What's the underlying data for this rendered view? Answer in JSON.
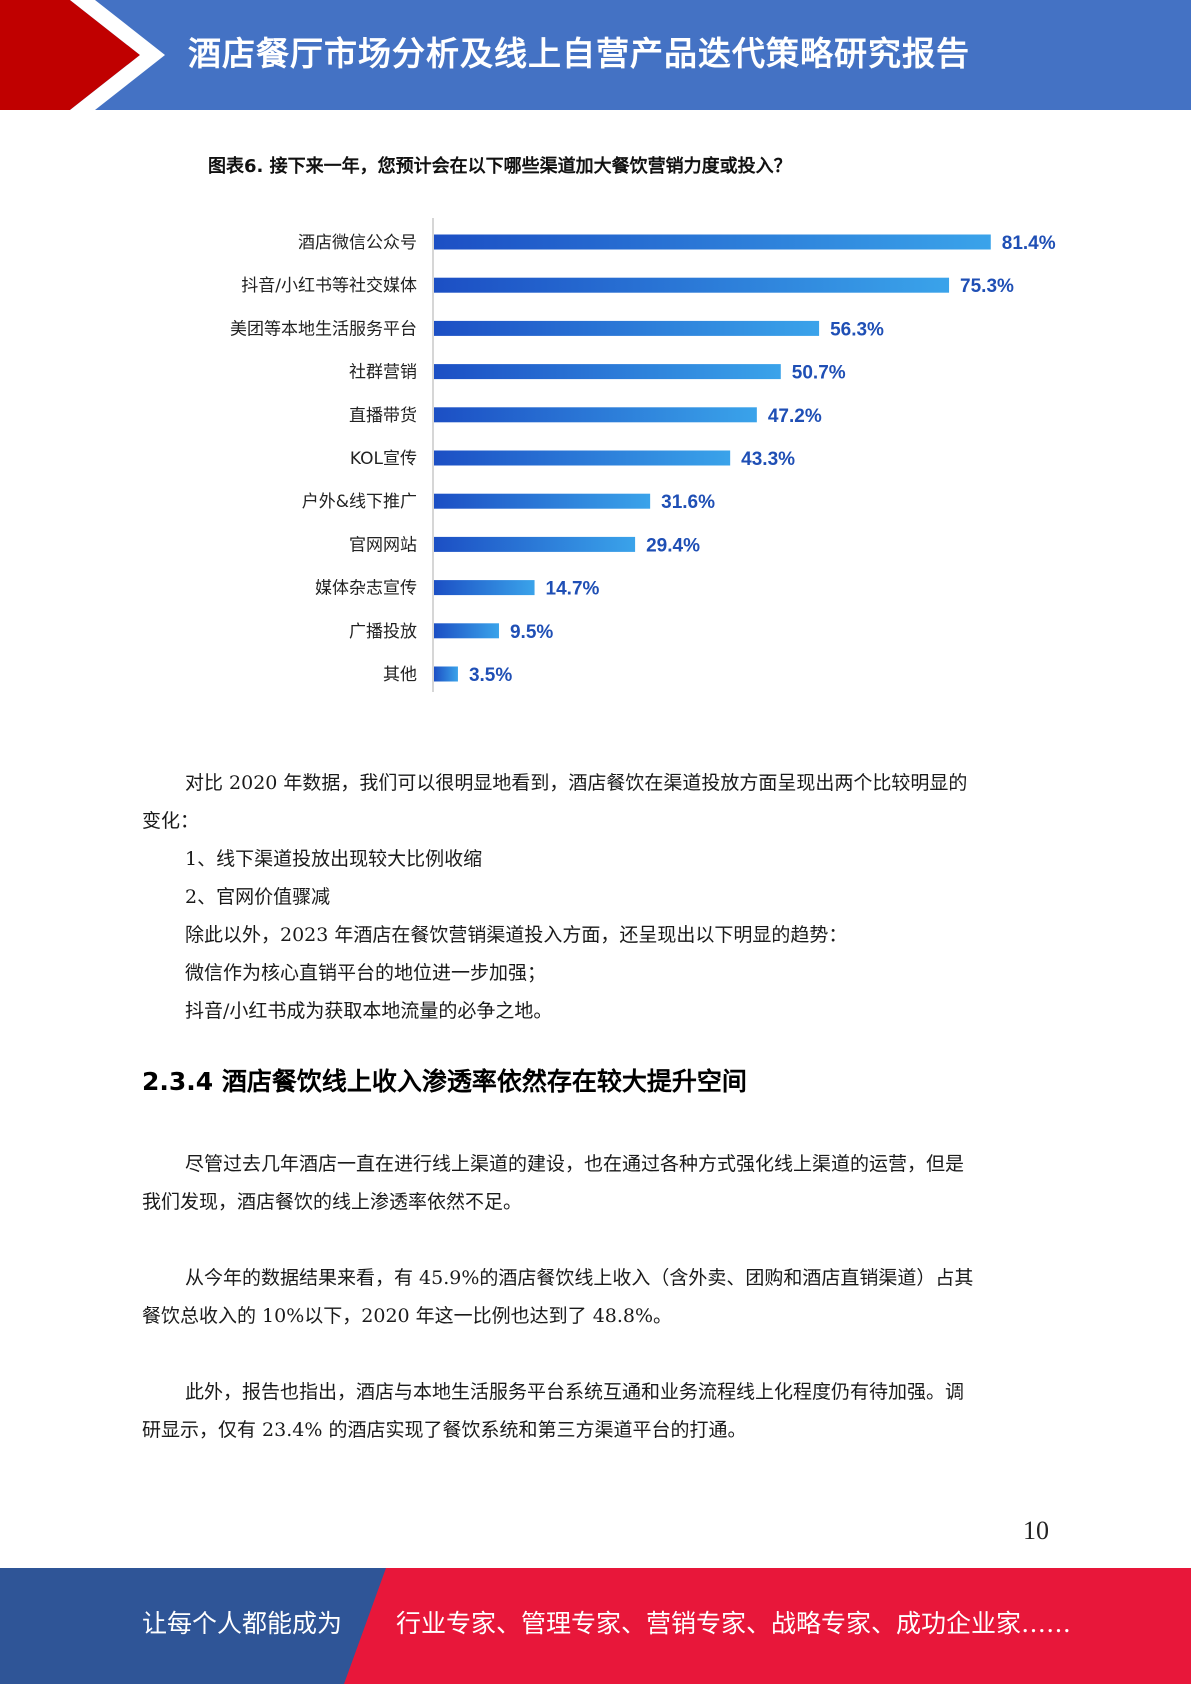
{
  "header": {
    "title": "酒店餐厅市场分析及线上自营产品迭代策略研究报告",
    "colors": {
      "band": "#4472c4",
      "accent": "#c00000"
    }
  },
  "chart_data": {
    "type": "bar",
    "orientation": "horizontal",
    "title": "图表6. 接下来一年，您预计会在以下哪些渠道加大餐饮营销力度或投入？",
    "categories": [
      "酒店微信公众号",
      "抖音/小红书等社交媒体",
      "美团等本地生活服务平台",
      "社群营销",
      "直播带货",
      "KOL宣传",
      "户外&线下推广",
      "官网网站",
      "媒体杂志宣传",
      "广播投放",
      "其他"
    ],
    "values": [
      81.4,
      75.3,
      56.3,
      50.7,
      47.2,
      43.3,
      31.6,
      29.4,
      14.7,
      9.5,
      3.5
    ],
    "value_labels": [
      "81.4%",
      "75.3%",
      "56.3%",
      "50.7%",
      "47.2%",
      "43.3%",
      "31.6%",
      "29.4%",
      "14.7%",
      "9.5%",
      "3.5%"
    ],
    "xlim": [
      0,
      100
    ],
    "grid": false,
    "colors": {
      "bar_start": "#1c4fc4",
      "bar_end": "#3aa3ea",
      "label": "#1f4fb5"
    }
  },
  "body": {
    "intro_line1": "对比 2020 年数据，我们可以很明显地看到，酒店餐饮在渠道投放方面呈现出两个比较明显的",
    "intro_line2": "变化：",
    "change1": "1、线下渠道投放出现较大比例收缩",
    "change2": "2、官网价值骤减",
    "trend_intro": "除此以外，2023 年酒店在餐饮营销渠道投入方面，还呈现出以下明显的趋势：",
    "trend1": "微信作为核心直销平台的地位进一步加强；",
    "trend2": "抖音/小红书成为获取本地流量的必争之地。",
    "section_heading": "2.3.4 酒店餐饮线上收入渗透率依然存在较大提升空间",
    "p1_line1": "尽管过去几年酒店一直在进行线上渠道的建设，也在通过各种方式强化线上渠道的运营，但是",
    "p1_line2": "我们发现，酒店餐饮的线上渗透率依然不足。",
    "p2_line1": "从今年的数据结果来看，有 45.9%的酒店餐饮线上收入（含外卖、团购和酒店直销渠道）占其",
    "p2_line2": "餐饮总收入的 10%以下，2020 年这一比例也达到了 48.8%。",
    "p3_line1": "此外，报告也指出，酒店与本地生活服务平台系统互通和业务流程线上化程度仍有待加强。调",
    "p3_line2": "研显示，仅有 23.4% 的酒店实现了餐饮系统和第三方渠道平台的打通。"
  },
  "page_number": "10",
  "footer": {
    "left": "让每个人都能成为",
    "right": "行业专家、管理专家、营销专家、战略专家、成功企业家……",
    "colors": {
      "left_band": "#2f5597",
      "right_band": "#e8173a"
    }
  }
}
